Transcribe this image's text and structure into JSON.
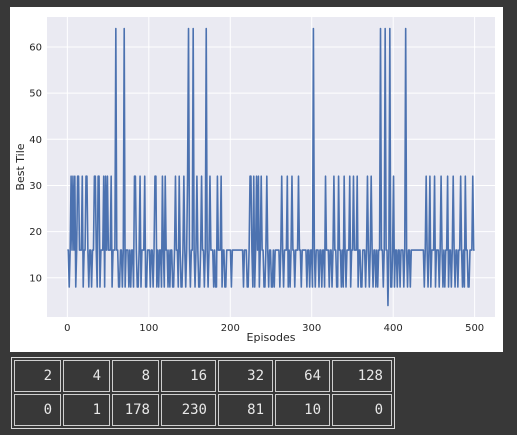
{
  "chart_data": {
    "type": "line",
    "title": "",
    "xlabel": "Episodes",
    "ylabel": "Best Tile",
    "xlim": [
      -25,
      525
    ],
    "ylim": [
      1.5,
      66.5
    ],
    "xticks": [
      0,
      100,
      200,
      300,
      400,
      500
    ],
    "yticks": [
      10,
      20,
      30,
      40,
      50,
      60
    ],
    "grid": true,
    "color": "#4c72b0",
    "x_start": 0,
    "series": [
      {
        "values": [
          16,
          16,
          8,
          16,
          32,
          16,
          32,
          16,
          32,
          8,
          16,
          32,
          32,
          16,
          16,
          16,
          32,
          8,
          16,
          16,
          32,
          32,
          16,
          8,
          16,
          16,
          8,
          16,
          16,
          32,
          32,
          16,
          8,
          32,
          32,
          8,
          16,
          16,
          16,
          32,
          8,
          32,
          16,
          32,
          16,
          16,
          16,
          32,
          8,
          16,
          16,
          16,
          64,
          16,
          16,
          8,
          8,
          16,
          16,
          8,
          16,
          64,
          8,
          16,
          16,
          16,
          8,
          16,
          8,
          16,
          16,
          8,
          32,
          32,
          16,
          8,
          8,
          16,
          32,
          8,
          16,
          16,
          16,
          32,
          8,
          8,
          16,
          16,
          16,
          8,
          16,
          16,
          8,
          16,
          32,
          32,
          8,
          16,
          8,
          16,
          16,
          8,
          32,
          16,
          8,
          32,
          16,
          16,
          8,
          16,
          8,
          16,
          16,
          8,
          8,
          16,
          32,
          16,
          16,
          8,
          32,
          16,
          8,
          8,
          16,
          32,
          16,
          8,
          16,
          32,
          64,
          16,
          8,
          16,
          16,
          64,
          16,
          8,
          16,
          32,
          16,
          8,
          8,
          16,
          32,
          16,
          16,
          8,
          16,
          64,
          16,
          8,
          16,
          32,
          16,
          16,
          16,
          8,
          16,
          8,
          8,
          32,
          16,
          16,
          16,
          32,
          8,
          16,
          16,
          8,
          8,
          16,
          16,
          16,
          16,
          16,
          8,
          16,
          16,
          16,
          16,
          16,
          16,
          16,
          16,
          16,
          16,
          16,
          16,
          8,
          16,
          16,
          16,
          8,
          8,
          16,
          32,
          32,
          16,
          8,
          32,
          8,
          16,
          32,
          16,
          32,
          8,
          16,
          32,
          16,
          16,
          8,
          8,
          16,
          32,
          16,
          8,
          16,
          16,
          8,
          8,
          16,
          8,
          16,
          16,
          16,
          16,
          16,
          8,
          16,
          32,
          16,
          8,
          16,
          16,
          16,
          32,
          8,
          16,
          8,
          16,
          32,
          16,
          16,
          8,
          16,
          16,
          16,
          32,
          16,
          16,
          8,
          16,
          16,
          16,
          16,
          16,
          8,
          16,
          16,
          8,
          16,
          16,
          8,
          64,
          16,
          8,
          16,
          16,
          16,
          8,
          16,
          16,
          8,
          16,
          16,
          8,
          32,
          16,
          16,
          16,
          8,
          16,
          16,
          8,
          16,
          32,
          16,
          16,
          8,
          8,
          32,
          16,
          16,
          8,
          16,
          8,
          32,
          16,
          8,
          16,
          16,
          16,
          32,
          8,
          16,
          16,
          32,
          16,
          16,
          16,
          32,
          8,
          16,
          16,
          8,
          8,
          16,
          16,
          16,
          8,
          16,
          32,
          16,
          8,
          16,
          32,
          16,
          8,
          16,
          16,
          8,
          16,
          8,
          16,
          16,
          64,
          16,
          16,
          8,
          16,
          64,
          16,
          16,
          4,
          16,
          64,
          8,
          8,
          16,
          32,
          8,
          16,
          16,
          8,
          16,
          16,
          8,
          16,
          16,
          16,
          8,
          16,
          64,
          16,
          8,
          16,
          16,
          8,
          16,
          16,
          16,
          16,
          16,
          16,
          16,
          16,
          16,
          16,
          16,
          16,
          16,
          16,
          8,
          16,
          32,
          16,
          8,
          16,
          32,
          8,
          16,
          16,
          16,
          32,
          8,
          16,
          16,
          16,
          8,
          16,
          32,
          16,
          8,
          16,
          8,
          16,
          16,
          32,
          8,
          16,
          16,
          8,
          16,
          32,
          16,
          8,
          16,
          16,
          8,
          16,
          16,
          32,
          16,
          8,
          16,
          8,
          32,
          16,
          16,
          8,
          8,
          16,
          16,
          16,
          32,
          16,
          16
        ]
      }
    ]
  },
  "table": {
    "rows": [
      [
        "2",
        "4",
        "8",
        "16",
        "32",
        "64",
        "128"
      ],
      [
        "0",
        "1",
        "178",
        "230",
        "81",
        "10",
        "0"
      ]
    ]
  }
}
